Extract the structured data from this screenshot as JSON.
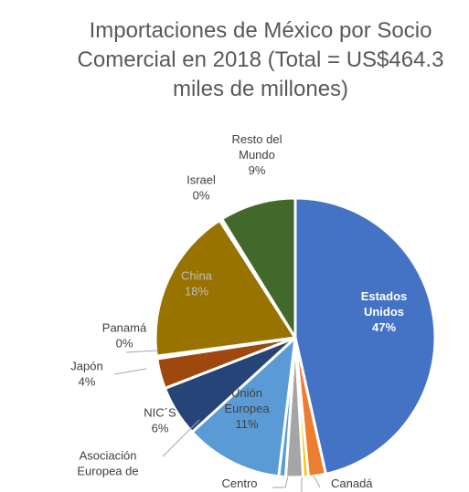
{
  "chart_data": {
    "type": "pie",
    "title_lines": [
      "Importaciones de México por Socio",
      "Comercial en 2018 (Total = US$464.3",
      "miles de millones)"
    ],
    "slices": [
      {
        "label_lines": [
          "Estados",
          "Unidos"
        ],
        "value_text": "47%",
        "value": 46.5,
        "color": "#4472c4"
      },
      {
        "label_lines": [
          "Canadá"
        ],
        "value_text": "",
        "value": 2.0,
        "color": "#ed7d31"
      },
      {
        "label_lines": [],
        "value_text": "",
        "value": 0.6,
        "color": "#ffc000"
      },
      {
        "label_lines": [
          "Centro"
        ],
        "value_text": "",
        "value": 2.0,
        "color": "#a5a5a5"
      },
      {
        "label_lines": [
          "Asociación",
          "Europea de"
        ],
        "value_text": "",
        "value": 0.8,
        "color": "#5b9bd5"
      },
      {
        "label_lines": [
          "Unión",
          "Europea"
        ],
        "value_text": "11%",
        "value": 11.3,
        "color": "#5b9bd5"
      },
      {
        "label_lines": [
          "NIC´S"
        ],
        "value_text": "6%",
        "value": 5.9,
        "color": "#264478"
      },
      {
        "label_lines": [
          "Japón"
        ],
        "value_text": "4%",
        "value": 3.5,
        "color": "#9e480e"
      },
      {
        "label_lines": [
          "Panamá"
        ],
        "value_text": "0%",
        "value": 0.3,
        "color": "#636363"
      },
      {
        "label_lines": [
          "China"
        ],
        "value_text": "18%",
        "value": 18.0,
        "color": "#997300"
      },
      {
        "label_lines": [
          "Israel"
        ],
        "value_text": "0%",
        "value": 0.3,
        "color": "#255e91"
      },
      {
        "label_lines": [
          "Resto del",
          "Mundo"
        ],
        "value_text": "9%",
        "value": 8.8,
        "color": "#43682b"
      }
    ]
  }
}
